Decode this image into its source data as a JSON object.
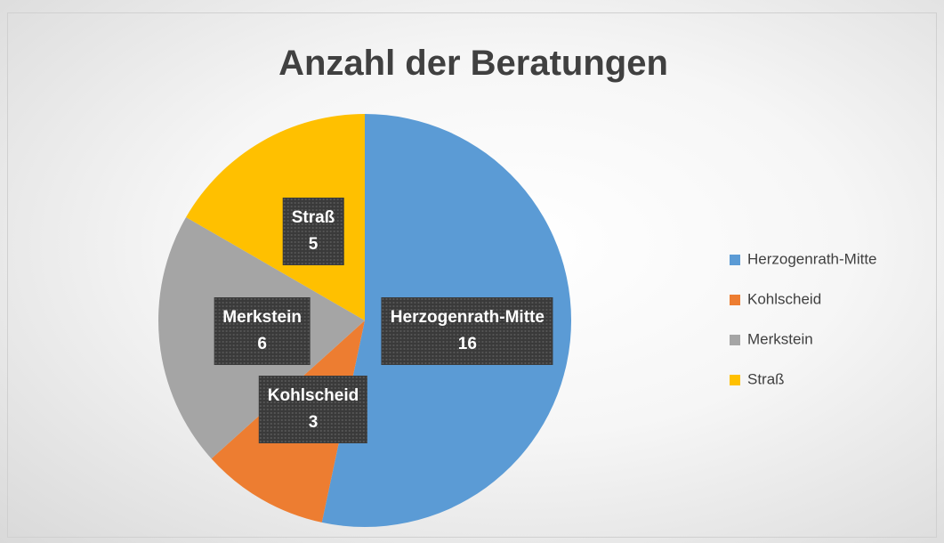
{
  "chart_data": {
    "type": "pie",
    "title": "Anzahl der Beratungen",
    "categories": [
      "Herzogenrath-Mitte",
      "Kohlscheid",
      "Merkstein",
      "Straß"
    ],
    "values": [
      16,
      3,
      6,
      5
    ],
    "colors": [
      "#5b9bd5",
      "#ed7d31",
      "#a5a5a5",
      "#ffc000"
    ],
    "legend": "right"
  }
}
